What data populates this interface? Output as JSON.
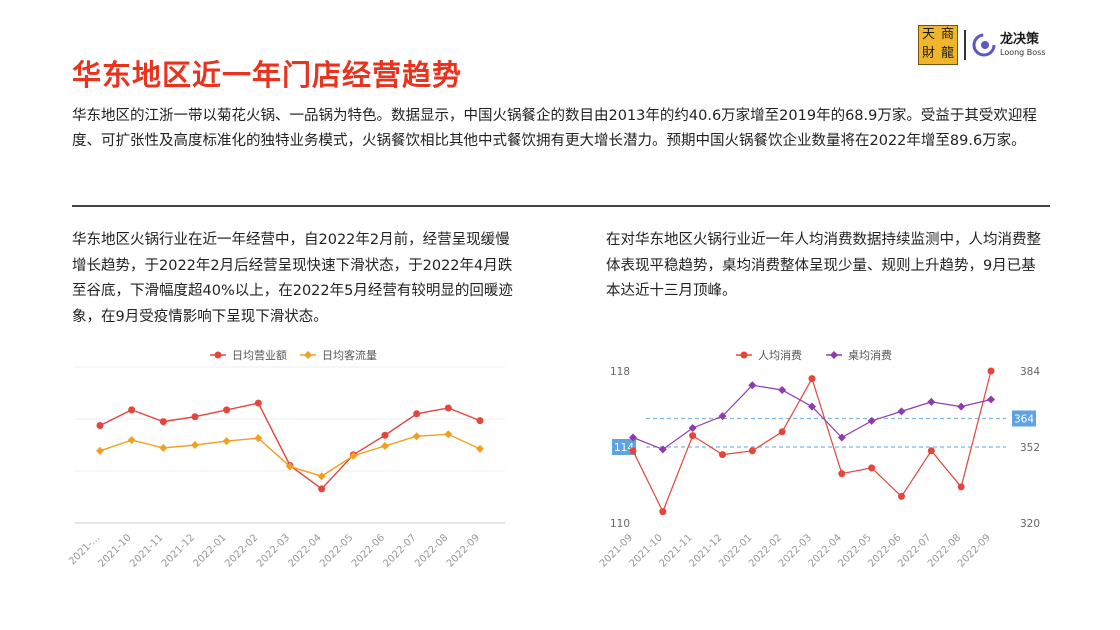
{
  "page": {
    "title": "华东地区近一年门店经营趋势",
    "intro": "华东地区的江浙一带以菊花火锅、一品锅为特色。数据显示，中国火锅餐企的数目由2013年的约40.6万家增至2019年的68.9万家。受益于其受欢迎程度、可扩张性及高度标准化的独特业务模式，火锅餐饮相比其他中式餐饮拥有更大增长潜力。预期中国火锅餐饮企业数量将在2022年增至89.6万家。",
    "left_text": "华东地区火锅行业在近一年经营中，自2022年2月前，经营呈现缓慢增长趋势，于2022年2月后经营呈现快速下滑状态，于2022年4月跌至谷底，下滑幅度超40%以上，在2022年5月经营有较明显的回暖迹象，在9月受疫情影响下呈现下滑状态。",
    "right_text": "在对华东地区火锅行业近一年人均消费数据持续监测中，人均消费整体表现平稳趋势，桌均消费整体呈现少量、规则上升趋势，9月已基本达近十三月顶峰。"
  },
  "logo": {
    "tsl_chars": [
      "天",
      "商",
      "財",
      "龍"
    ],
    "brand_cn": "龙决策",
    "brand_en": "Loong Boss"
  },
  "colors": {
    "title": "#e8331f",
    "red": "#e5453a",
    "orange": "#f0a020",
    "purple": "#8e3bb0",
    "ref": "#7fb6e8",
    "badge": "#5ea3e2"
  },
  "chart_data": [
    {
      "type": "line",
      "title": "",
      "categories": [
        "2021-...",
        "2021-10",
        "2021-11",
        "2021-12",
        "2022-01",
        "2022-02",
        "2022-03",
        "2022-04",
        "2022-05",
        "2022-06",
        "2022-07",
        "2022-08",
        "2022-09"
      ],
      "series": [
        {
          "name": "日均营业额",
          "color": "#e5453a",
          "values": [
            100,
            116,
            104,
            109,
            116,
            123,
            59,
            35,
            70,
            90,
            112,
            118,
            105
          ]
        },
        {
          "name": "日均客流量",
          "color": "#f0a020",
          "values": [
            74,
            85,
            77,
            80,
            84,
            87,
            58,
            48,
            69,
            79,
            89,
            91,
            76
          ]
        }
      ],
      "ylim": [
        0,
        160
      ],
      "grid": true,
      "legend": "top-center"
    },
    {
      "type": "line",
      "title": "",
      "categories": [
        "2021-09",
        "2021-10",
        "2021-11",
        "2021-12",
        "2022-01",
        "2022-02",
        "2022-03",
        "2022-04",
        "2022-05",
        "2022-06",
        "2022-07",
        "2022-08",
        "2022-09"
      ],
      "series": [
        {
          "name": "人均消费",
          "color": "#e5453a",
          "axis": "left",
          "values": [
            113.8,
            110.6,
            114.6,
            113.6,
            113.8,
            114.8,
            117.6,
            112.6,
            112.9,
            111.4,
            113.8,
            111.9,
            118.0
          ]
        },
        {
          "name": "桌均消费",
          "color": "#8e3bb0",
          "axis": "right",
          "values": [
            356,
            351,
            360,
            365,
            378,
            376,
            369,
            356,
            363,
            367,
            371,
            369,
            372
          ]
        }
      ],
      "left_axis": {
        "ticks": [
          118,
          110
        ],
        "ylim": [
          110,
          118
        ]
      },
      "right_axis": {
        "ticks": [
          384,
          352,
          320
        ],
        "ylim": [
          320,
          384
        ]
      },
      "reference_lines": [
        {
          "axis": "right",
          "value": 364,
          "label": "364"
        },
        {
          "axis": "left",
          "value": 114,
          "label": "114"
        }
      ],
      "legend": "top-center"
    }
  ]
}
